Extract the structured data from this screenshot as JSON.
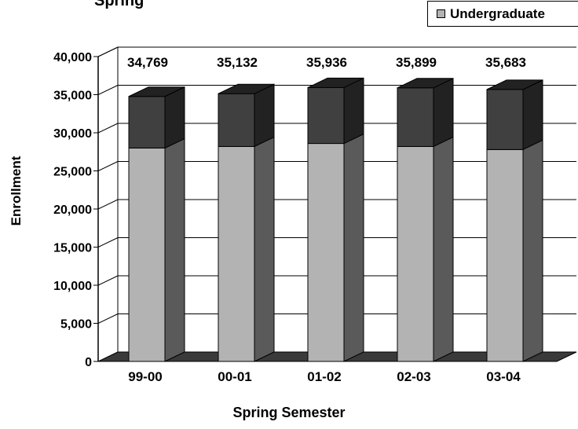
{
  "chart_data": {
    "type": "bar",
    "stacked": true,
    "three_d": true,
    "title": "Spring",
    "xlabel": "Spring Semester",
    "ylabel": "Enrollment",
    "ylim": [
      0,
      40000
    ],
    "yticks": [
      "0",
      "5,000",
      "10,000",
      "15,000",
      "20,000",
      "25,000",
      "30,000",
      "35,000",
      "40,000"
    ],
    "categories": [
      "99-00",
      "00-01",
      "01-02",
      "02-03",
      "03-04"
    ],
    "totals": [
      34769,
      35132,
      35936,
      35899,
      35683
    ],
    "total_labels": [
      "34,769",
      "35,132",
      "35,936",
      "35,899",
      "35,683"
    ],
    "series": [
      {
        "name": "Undergraduate",
        "values": [
          28000,
          28200,
          28600,
          28200,
          27800
        ],
        "color": "#b3b3b3"
      },
      {
        "values": [
          6769,
          6932,
          7336,
          7699,
          7883
        ],
        "color": "#404040"
      }
    ],
    "legend_position": "top-right",
    "grid": true
  }
}
